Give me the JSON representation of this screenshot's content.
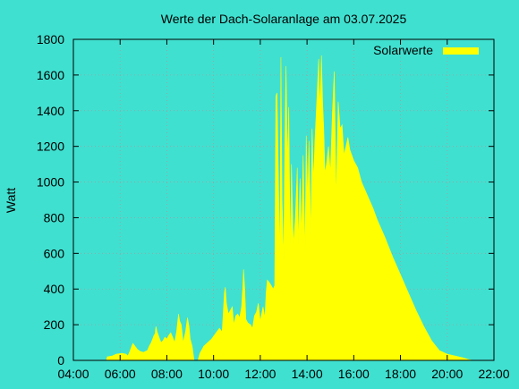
{
  "colors": {
    "background": "#40e0d0",
    "fill": "#ffff00",
    "grid": "#a0a0a0",
    "axis": "#000000"
  },
  "chart_data": {
    "type": "area",
    "title": "Werte der Dach-Solaranlage am 03.07.2025",
    "ylabel": "Watt",
    "xlabel": "",
    "legend_position": "top-right",
    "grid": true,
    "x_unit": "time of day",
    "xlim": [
      "04:00",
      "22:00"
    ],
    "ylim": [
      0,
      1800
    ],
    "xticks": [
      "04:00",
      "06:00",
      "08:00",
      "10:00",
      "12:00",
      "14:00",
      "16:00",
      "18:00",
      "20:00",
      "22:00"
    ],
    "yticks": [
      "0",
      "200",
      "400",
      "600",
      "800",
      "1000",
      "1200",
      "1400",
      "1600",
      "1800"
    ],
    "series": [
      {
        "name": "Solarwerte",
        "color": "#ffff00",
        "points": [
          [
            "05:25",
            0
          ],
          [
            "05:27",
            20
          ],
          [
            "05:40",
            25
          ],
          [
            "05:50",
            35
          ],
          [
            "06:05",
            40
          ],
          [
            "06:15",
            35
          ],
          [
            "06:20",
            25
          ],
          [
            "06:25",
            50
          ],
          [
            "06:30",
            80
          ],
          [
            "06:33",
            95
          ],
          [
            "06:38",
            80
          ],
          [
            "06:45",
            60
          ],
          [
            "06:52",
            50
          ],
          [
            "07:00",
            45
          ],
          [
            "07:10",
            55
          ],
          [
            "07:15",
            80
          ],
          [
            "07:20",
            100
          ],
          [
            "07:27",
            140
          ],
          [
            "07:30",
            150
          ],
          [
            "07:32",
            190
          ],
          [
            "07:35",
            160
          ],
          [
            "07:40",
            130
          ],
          [
            "07:45",
            100
          ],
          [
            "07:50",
            110
          ],
          [
            "07:55",
            130
          ],
          [
            "08:00",
            120
          ],
          [
            "08:05",
            140
          ],
          [
            "08:10",
            155
          ],
          [
            "08:15",
            130
          ],
          [
            "08:20",
            100
          ],
          [
            "08:25",
            160
          ],
          [
            "08:30",
            260
          ],
          [
            "08:33",
            220
          ],
          [
            "08:37",
            200
          ],
          [
            "08:42",
            100
          ],
          [
            "08:48",
            160
          ],
          [
            "08:53",
            240
          ],
          [
            "08:57",
            190
          ],
          [
            "09:00",
            120
          ],
          [
            "09:05",
            80
          ],
          [
            "09:10",
            0
          ],
          [
            "09:20",
            0
          ],
          [
            "09:25",
            40
          ],
          [
            "09:35",
            80
          ],
          [
            "09:45",
            100
          ],
          [
            "09:55",
            120
          ],
          [
            "10:05",
            150
          ],
          [
            "10:15",
            180
          ],
          [
            "10:22",
            160
          ],
          [
            "10:28",
            380
          ],
          [
            "10:30",
            410
          ],
          [
            "10:33",
            320
          ],
          [
            "10:38",
            260
          ],
          [
            "10:43",
            280
          ],
          [
            "10:48",
            300
          ],
          [
            "10:52",
            200
          ],
          [
            "10:57",
            250
          ],
          [
            "11:02",
            260
          ],
          [
            "11:07",
            240
          ],
          [
            "11:12",
            300
          ],
          [
            "11:15",
            410
          ],
          [
            "11:17",
            510
          ],
          [
            "11:20",
            400
          ],
          [
            "11:23",
            230
          ],
          [
            "11:28",
            210
          ],
          [
            "11:35",
            200
          ],
          [
            "11:40",
            180
          ],
          [
            "11:45",
            250
          ],
          [
            "11:50",
            270
          ],
          [
            "11:55",
            320
          ],
          [
            "12:00",
            220
          ],
          [
            "12:07",
            300
          ],
          [
            "12:12",
            240
          ],
          [
            "12:15",
            380
          ],
          [
            "12:18",
            450
          ],
          [
            "12:22",
            440
          ],
          [
            "12:28",
            420
          ],
          [
            "12:33",
            400
          ],
          [
            "12:37",
            420
          ],
          [
            "12:40",
            1480
          ],
          [
            "12:43",
            1500
          ],
          [
            "12:46",
            1100
          ],
          [
            "12:50",
            560
          ],
          [
            "12:53",
            1700
          ],
          [
            "12:56",
            900
          ],
          [
            "13:00",
            560
          ],
          [
            "13:03",
            1200
          ],
          [
            "13:06",
            1650
          ],
          [
            "13:10",
            1100
          ],
          [
            "13:13",
            1420
          ],
          [
            "13:17",
            600
          ],
          [
            "13:20",
            1100
          ],
          [
            "13:25",
            650
          ],
          [
            "13:30",
            800
          ],
          [
            "13:35",
            1080
          ],
          [
            "13:38",
            650
          ],
          [
            "13:42",
            1020
          ],
          [
            "13:46",
            700
          ],
          [
            "13:50",
            1150
          ],
          [
            "13:55",
            600
          ],
          [
            "13:58",
            1260
          ],
          [
            "14:02",
            900
          ],
          [
            "14:05",
            1230
          ],
          [
            "14:10",
            700
          ],
          [
            "14:13",
            1300
          ],
          [
            "14:17",
            1000
          ],
          [
            "14:20",
            1220
          ],
          [
            "14:25",
            1450
          ],
          [
            "14:30",
            1690
          ],
          [
            "14:33",
            1400
          ],
          [
            "14:37",
            1710
          ],
          [
            "14:40",
            1450
          ],
          [
            "14:43",
            1300
          ],
          [
            "14:46",
            1050
          ],
          [
            "14:50",
            1100
          ],
          [
            "14:55",
            1200
          ],
          [
            "15:00",
            1050
          ],
          [
            "15:05",
            1380
          ],
          [
            "15:10",
            1620
          ],
          [
            "15:15",
            900
          ],
          [
            "15:20",
            1450
          ],
          [
            "15:25",
            1300
          ],
          [
            "15:30",
            1320
          ],
          [
            "15:35",
            1150
          ],
          [
            "15:40",
            1200
          ],
          [
            "15:45",
            1250
          ],
          [
            "15:50",
            1180
          ],
          [
            "16:00",
            1120
          ],
          [
            "16:10",
            1080
          ],
          [
            "16:20",
            1000
          ],
          [
            "16:30",
            950
          ],
          [
            "16:40",
            900
          ],
          [
            "16:50",
            850
          ],
          [
            "17:00",
            790
          ],
          [
            "17:20",
            690
          ],
          [
            "17:40",
            580
          ],
          [
            "18:00",
            480
          ],
          [
            "18:20",
            380
          ],
          [
            "18:40",
            280
          ],
          [
            "19:00",
            190
          ],
          [
            "19:20",
            110
          ],
          [
            "19:40",
            55
          ],
          [
            "20:00",
            35
          ],
          [
            "20:20",
            25
          ],
          [
            "20:40",
            15
          ],
          [
            "20:55",
            5
          ],
          [
            "21:05",
            0
          ]
        ]
      }
    ]
  }
}
